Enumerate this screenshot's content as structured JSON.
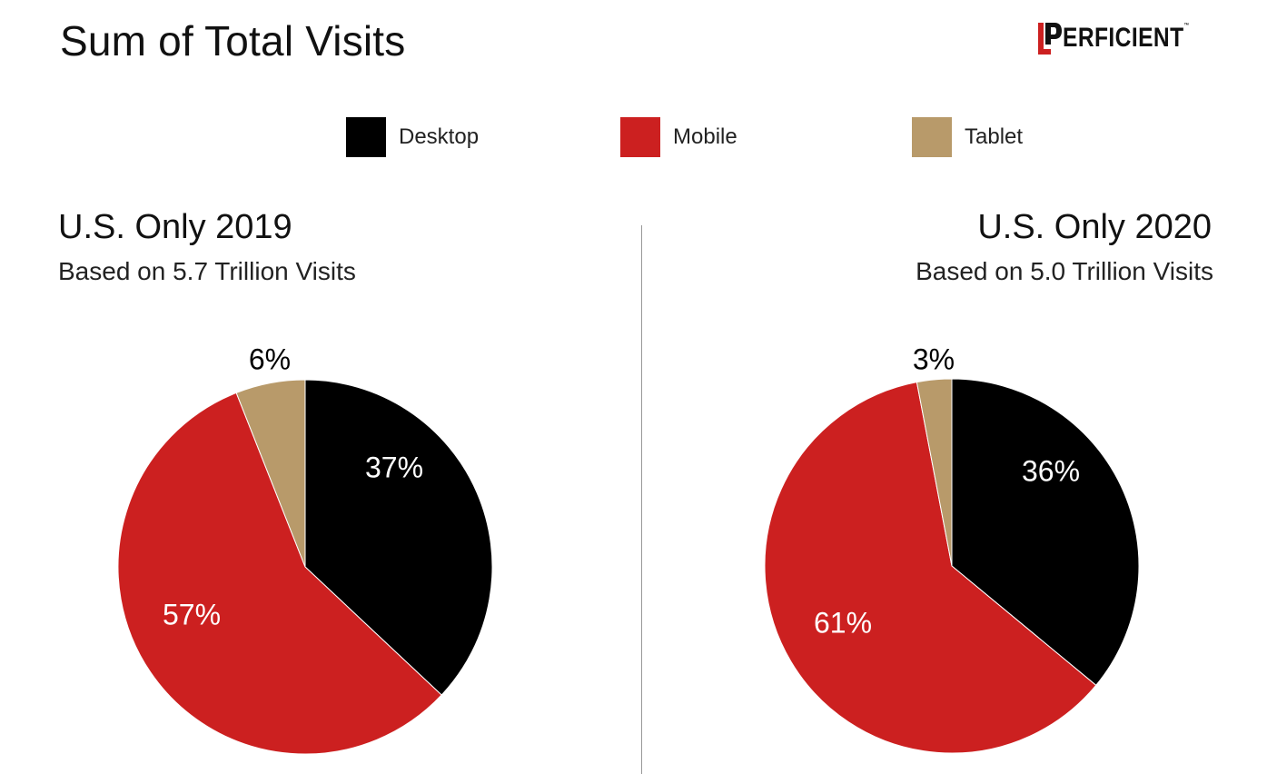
{
  "title": "Sum of Total Visits",
  "logo": {
    "mark": "P",
    "text": "ERFICIENT",
    "tm": "™"
  },
  "legend": [
    {
      "label": "Desktop",
      "color": "#000000"
    },
    {
      "label": "Mobile",
      "color": "#cc2020"
    },
    {
      "label": "Tablet",
      "color": "#b89a6a"
    }
  ],
  "panels": {
    "left": {
      "heading": "U.S. Only 2019",
      "subheading": "Based on 5.7 Trillion Visits"
    },
    "right": {
      "heading": "U.S. Only 2020",
      "subheading": "Based on 5.0 Trillion Visits"
    }
  },
  "chart_data": [
    {
      "type": "pie",
      "title": "U.S. Only 2019",
      "subtitle": "Based on 5.7 Trillion Visits",
      "categories": [
        "Desktop",
        "Mobile",
        "Tablet"
      ],
      "values": [
        37,
        57,
        6
      ],
      "labels": [
        "37%",
        "57%",
        "6%"
      ],
      "colors": [
        "#000000",
        "#cc2020",
        "#b89a6a"
      ],
      "legend": "top"
    },
    {
      "type": "pie",
      "title": "U.S. Only 2020",
      "subtitle": "Based on 5.0 Trillion Visits",
      "categories": [
        "Desktop",
        "Mobile",
        "Tablet"
      ],
      "values": [
        36,
        61,
        3
      ],
      "labels": [
        "36%",
        "61%",
        "3%"
      ],
      "colors": [
        "#000000",
        "#cc2020",
        "#b89a6a"
      ],
      "legend": "top"
    }
  ]
}
